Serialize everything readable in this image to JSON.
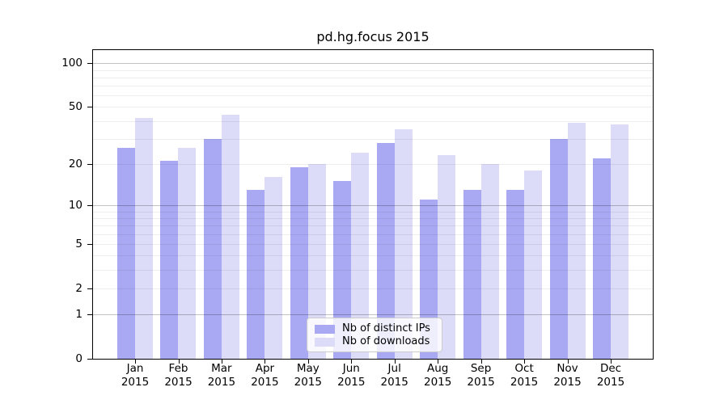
{
  "chart_data": {
    "type": "bar",
    "title": "pd.hg.focus 2015",
    "year_label": "2015",
    "categories": [
      "Jan",
      "Feb",
      "Mar",
      "Apr",
      "May",
      "Jun",
      "Jul",
      "Aug",
      "Sep",
      "Oct",
      "Nov",
      "Dec"
    ],
    "series": [
      {
        "name": "Nb of distinct IPs",
        "color": "#a9a9f3",
        "values": [
          26,
          21,
          30,
          13,
          19,
          15,
          28,
          11,
          13,
          13,
          30,
          22
        ]
      },
      {
        "name": "Nb of downloads",
        "color": "#dcdcf8",
        "values": [
          42,
          26,
          44,
          16,
          20,
          24,
          35,
          23,
          20,
          18,
          39,
          38
        ]
      }
    ],
    "xlabel": "",
    "ylabel": "",
    "yscale": "log1p",
    "ylim": [
      0,
      123
    ],
    "y_ticks": [
      100,
      50,
      20,
      10,
      5,
      2,
      1,
      0
    ],
    "gridlines": {
      "major": [
        1,
        10,
        100
      ],
      "minor": [
        2,
        3,
        4,
        5,
        6,
        7,
        8,
        9,
        20,
        30,
        40,
        50,
        60,
        70,
        80,
        90
      ]
    },
    "grid": true,
    "legend_position": "bottom-center",
    "colors": {
      "axis": "#000000",
      "grid_major": "#c8c8c8",
      "grid_minor": "#ededed",
      "background": "#ffffff"
    }
  }
}
